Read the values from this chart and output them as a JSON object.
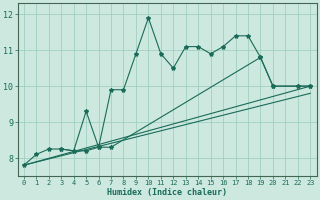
{
  "xlabel": "Humidex (Indice chaleur)",
  "xlim": [
    -0.5,
    23.5
  ],
  "ylim": [
    7.5,
    12.3
  ],
  "yticks": [
    8,
    9,
    10,
    11,
    12
  ],
  "xticks": [
    0,
    1,
    2,
    3,
    4,
    5,
    6,
    7,
    8,
    9,
    10,
    11,
    12,
    13,
    14,
    15,
    16,
    17,
    18,
    19,
    20,
    21,
    22,
    23
  ],
  "bg_color": "#cce8df",
  "grid_color": "#99ccbb",
  "line_color": "#1a6b58",
  "line1_x": [
    0,
    1,
    2,
    3,
    4,
    5,
    6,
    7,
    8,
    9,
    10,
    11,
    12,
    13,
    14,
    15,
    16,
    17,
    18,
    19,
    20,
    22,
    23
  ],
  "line1_y": [
    7.8,
    8.1,
    8.25,
    8.25,
    8.2,
    9.3,
    8.3,
    9.9,
    9.9,
    10.9,
    11.9,
    10.9,
    10.5,
    11.1,
    11.1,
    10.9,
    11.1,
    11.4,
    11.4,
    10.8,
    10.0,
    10.0,
    10.0
  ],
  "line2_x": [
    0,
    23
  ],
  "line2_y": [
    7.8,
    10.0
  ],
  "line3_x": [
    0,
    23
  ],
  "line3_y": [
    7.8,
    9.8
  ],
  "line4_x": [
    3,
    4,
    5,
    6,
    7,
    19,
    20,
    22,
    23
  ],
  "line4_y": [
    8.25,
    8.2,
    8.2,
    8.3,
    8.3,
    10.8,
    10.0,
    10.0,
    10.0
  ]
}
